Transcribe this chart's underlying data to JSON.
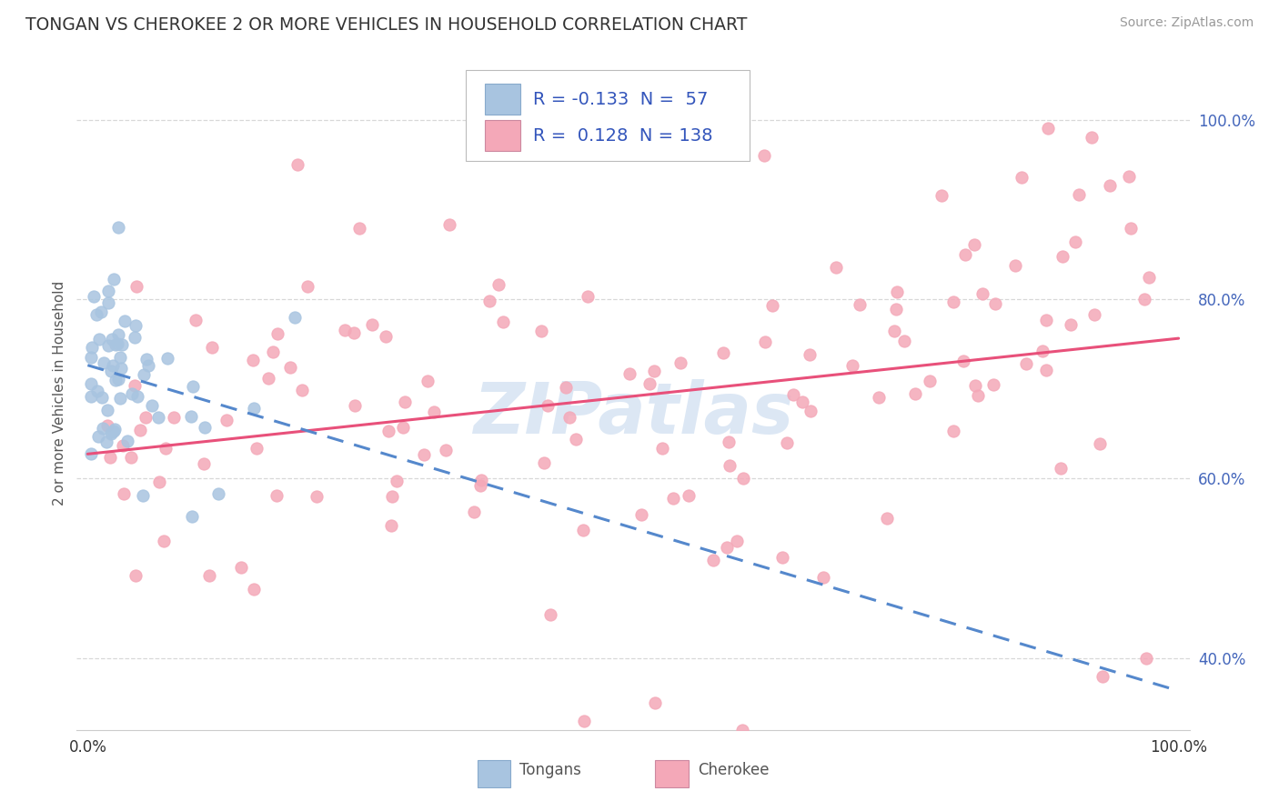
{
  "title": "TONGAN VS CHEROKEE 2 OR MORE VEHICLES IN HOUSEHOLD CORRELATION CHART",
  "source_text": "Source: ZipAtlas.com",
  "ylabel": "2 or more Vehicles in Household",
  "tongans_color": "#a8c4e0",
  "tongans_edge": "#7aa8d0",
  "cherokee_color": "#f4a8b8",
  "cherokee_edge": "#e07090",
  "trendline_tongans_color": "#5588cc",
  "trendline_cherokee_color": "#e8507a",
  "watermark_color": "#c5d8ee",
  "background_color": "#ffffff",
  "grid_color": "#d8d8d8",
  "title_color": "#333333",
  "source_color": "#999999",
  "axis_label_color": "#555555",
  "tick_color": "#4466bb",
  "legend_text_color": "#3355bb",
  "legend_r1": "R = -0.133",
  "legend_n1": "N =  57",
  "legend_r2": "R =  0.128",
  "legend_n2": "N = 138",
  "bottom_label1": "Tongans",
  "bottom_label2": "Cherokee"
}
